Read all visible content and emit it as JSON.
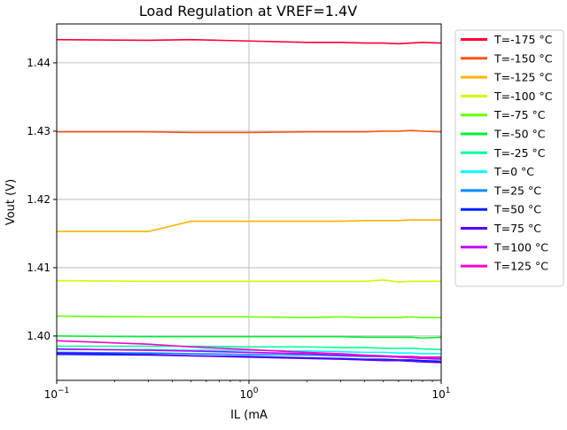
{
  "chart_data": {
    "type": "line",
    "title": "Load Regulation at VREF=1.4V",
    "xlabel": "IL (mA",
    "ylabel": "Vout (V)",
    "x_scale": "log",
    "xlim": [
      0.1,
      10
    ],
    "ylim": [
      1.3935,
      1.4457
    ],
    "grid": true,
    "legend_position": "outside-right",
    "x_ticks": [
      {
        "value": 0.1,
        "base": "10",
        "exp": "−1"
      },
      {
        "value": 1,
        "base": "10",
        "exp": "0"
      },
      {
        "value": 10,
        "base": "10",
        "exp": "1"
      }
    ],
    "y_ticks": [
      {
        "value": 1.4,
        "label": "1.40"
      },
      {
        "value": 1.41,
        "label": "1.41"
      },
      {
        "value": 1.42,
        "label": "1.42"
      },
      {
        "value": 1.43,
        "label": "1.43"
      },
      {
        "value": 1.44,
        "label": "1.44"
      }
    ],
    "series": [
      {
        "name": "T=-175 °C",
        "color": "#ff0033",
        "x": [
          0.1,
          0.3,
          0.5,
          1,
          2,
          3,
          4,
          5,
          6,
          7,
          8,
          10
        ],
        "y": [
          1.4434,
          1.4433,
          1.4434,
          1.4432,
          1.443,
          1.443,
          1.4429,
          1.4429,
          1.4428,
          1.4429,
          1.443,
          1.4429
        ]
      },
      {
        "name": "T=-150 °C",
        "color": "#ff5511",
        "x": [
          0.1,
          0.3,
          0.5,
          1,
          2,
          3,
          4,
          5,
          6,
          7,
          8,
          10
        ],
        "y": [
          1.4299,
          1.4299,
          1.4298,
          1.4298,
          1.4299,
          1.4299,
          1.4299,
          1.43,
          1.43,
          1.4301,
          1.43,
          1.4299
        ]
      },
      {
        "name": "T=-125 °C",
        "color": "#ffb300",
        "x": [
          0.1,
          0.3,
          0.5,
          1,
          2,
          3,
          4,
          5,
          6,
          7,
          8,
          10
        ],
        "y": [
          1.4153,
          1.4153,
          1.4168,
          1.4168,
          1.4168,
          1.4168,
          1.4169,
          1.4169,
          1.4169,
          1.417,
          1.417,
          1.417
        ]
      },
      {
        "name": "T=-100 °C",
        "color": "#ccff00",
        "x": [
          0.1,
          0.3,
          0.5,
          1,
          2,
          3,
          4,
          5,
          6,
          7,
          8,
          10
        ],
        "y": [
          1.4081,
          1.408,
          1.408,
          1.408,
          1.408,
          1.408,
          1.408,
          1.4082,
          1.4079,
          1.408,
          1.408,
          1.408
        ]
      },
      {
        "name": "T=-75 °C",
        "color": "#66ff00",
        "x": [
          0.1,
          0.3,
          0.5,
          1,
          2,
          3,
          4,
          5,
          6,
          7,
          8,
          10
        ],
        "y": [
          1.4029,
          1.4028,
          1.4028,
          1.4028,
          1.4027,
          1.4028,
          1.4027,
          1.4027,
          1.4027,
          1.4028,
          1.4027,
          1.4027
        ]
      },
      {
        "name": "T=-50 °C",
        "color": "#00ee33",
        "x": [
          0.1,
          0.3,
          0.5,
          1,
          2,
          3,
          4,
          5,
          6,
          7,
          8,
          10
        ],
        "y": [
          1.4,
          1.3999,
          1.3999,
          1.3999,
          1.3999,
          1.3999,
          1.3998,
          1.3998,
          1.3998,
          1.3998,
          1.3997,
          1.3998
        ]
      },
      {
        "name": "T=-25 °C",
        "color": "#00ff99",
        "x": [
          0.1,
          0.3,
          0.5,
          1,
          2,
          3,
          4,
          5,
          6,
          7,
          8,
          10
        ],
        "y": [
          1.3985,
          1.3985,
          1.3985,
          1.3984,
          1.3984,
          1.3983,
          1.3983,
          1.3982,
          1.3982,
          1.3982,
          1.3981,
          1.398
        ]
      },
      {
        "name": "T=0 °C",
        "color": "#00ffff",
        "x": [
          0.1,
          0.3,
          0.5,
          1,
          2,
          3,
          4,
          5,
          6,
          7,
          8,
          10
        ],
        "y": [
          1.398,
          1.398,
          1.3979,
          1.3979,
          1.3978,
          1.3977,
          1.3976,
          1.3976,
          1.3975,
          1.3975,
          1.3974,
          1.3974
        ]
      },
      {
        "name": "T=25 °C",
        "color": "#0088ff",
        "x": [
          0.1,
          0.3,
          0.5,
          1,
          2,
          3,
          4,
          5,
          6,
          7,
          8,
          10
        ],
        "y": [
          1.3976,
          1.3975,
          1.3974,
          1.3973,
          1.3972,
          1.3971,
          1.397,
          1.397,
          1.3969,
          1.3969,
          1.3968,
          1.3968
        ]
      },
      {
        "name": "T=50 °C",
        "color": "#0022ff",
        "x": [
          0.1,
          0.3,
          0.5,
          1,
          2,
          3,
          4,
          5,
          6,
          7,
          8,
          10
        ],
        "y": [
          1.3973,
          1.3972,
          1.3971,
          1.397,
          1.3968,
          1.3967,
          1.3966,
          1.3966,
          1.3965,
          1.3965,
          1.3964,
          1.3963
        ]
      },
      {
        "name": "T=75 °C",
        "color": "#5500ff",
        "x": [
          0.1,
          0.3,
          0.5,
          1,
          2,
          3,
          4,
          5,
          6,
          7,
          8,
          10
        ],
        "y": [
          1.3975,
          1.3973,
          1.3971,
          1.3969,
          1.3967,
          1.3966,
          1.3965,
          1.3964,
          1.3964,
          1.3963,
          1.3962,
          1.3961
        ]
      },
      {
        "name": "T=100 °C",
        "color": "#bb00ff",
        "x": [
          0.1,
          0.3,
          0.5,
          1,
          2,
          3,
          4,
          5,
          6,
          7,
          8,
          10
        ],
        "y": [
          1.3981,
          1.3979,
          1.3978,
          1.3976,
          1.3974,
          1.3972,
          1.3971,
          1.397,
          1.3969,
          1.3968,
          1.3967,
          1.3966
        ]
      },
      {
        "name": "T=125 °C",
        "color": "#ff00cc",
        "x": [
          0.1,
          0.3,
          0.5,
          1,
          2,
          3,
          4,
          5,
          6,
          7,
          8,
          10
        ],
        "y": [
          1.3993,
          1.3988,
          1.3984,
          1.398,
          1.3976,
          1.3974,
          1.3972,
          1.3971,
          1.397,
          1.397,
          1.3969,
          1.3969
        ]
      }
    ]
  }
}
